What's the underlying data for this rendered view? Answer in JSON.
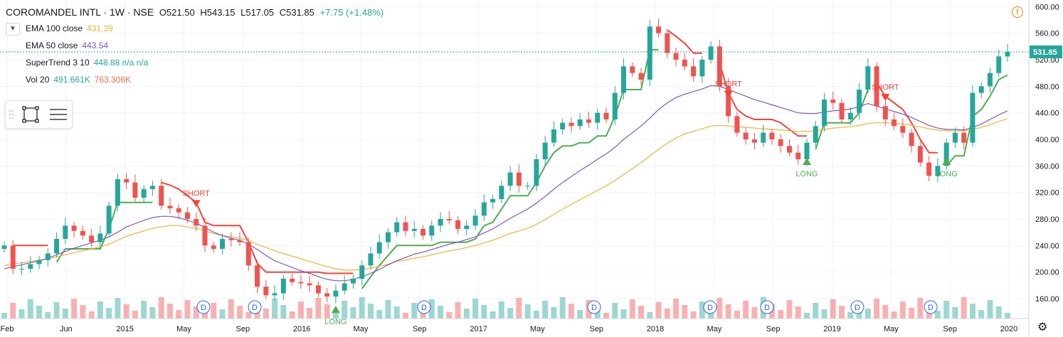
{
  "header": {
    "symbol": "COROMANDEL INTL · 1W · NSE",
    "open": "O521.50",
    "high": "H543.15",
    "low": "L517.05",
    "close": "C531.85",
    "change": "+7.75 (+1.48%)"
  },
  "indicators": [
    {
      "label": "EMA 100 close",
      "value": "431.39",
      "color": "#f2b134"
    },
    {
      "label": "EMA 50 close",
      "value": "443.54",
      "color": "#7e57c2"
    },
    {
      "label": "SuperTrend 3 10",
      "value": "448.88  n/a  n/a",
      "color": "#26a69a"
    },
    {
      "label": "Vol 20",
      "value": "491.661K",
      "value2": "763.306K",
      "color": "#26a69a",
      "color2": "#ef6c47"
    }
  ],
  "icons": {
    "collapse": "chevron-down-icon",
    "draw": "rectangle-tool-icon",
    "menu": "list-menu-icon",
    "warning": "warning-icon",
    "settings": "gear-icon"
  },
  "colors": {
    "up": "#26a69a",
    "down": "#ef5350",
    "supertrend_up": "#4caf50",
    "supertrend_down": "#f44336",
    "ema100": "#f2b134",
    "ema50": "#7e57c2"
  },
  "chart_data": {
    "type": "candlestick",
    "interval": "1W",
    "y_ticks": [
      "600.00",
      "560.00",
      "520.00",
      "480.00",
      "440.00",
      "400.00",
      "360.00",
      "320.00",
      "280.00",
      "240.00",
      "200.00",
      "160.00"
    ],
    "ylim": [
      130,
      610
    ],
    "last_price": "531.85",
    "x_labels": [
      "Feb",
      "Jun",
      "2015",
      "May",
      "Sep",
      "2016",
      "May",
      "Sep",
      "2017",
      "May",
      "Sep",
      "2018",
      "May",
      "Sep",
      "2019",
      "May",
      "Sep",
      "2020"
    ],
    "series": [
      {
        "name": "Price (weekly close)",
        "values": [
          240,
          205,
          205,
          212,
          218,
          228,
          250,
          270,
          262,
          255,
          245,
          258,
          300,
          340,
          335,
          312,
          325,
          330,
          300,
          296,
          290,
          280,
          270,
          240,
          235,
          250,
          248,
          245,
          210,
          178,
          165,
          168,
          190,
          185,
          183,
          180,
          168,
          163,
          172,
          183,
          190,
          210,
          228,
          245,
          260,
          275,
          262,
          265,
          255,
          270,
          280,
          278,
          265,
          270,
          285,
          305,
          310,
          330,
          350,
          330,
          330,
          370,
          395,
          415,
          425,
          420,
          430,
          425,
          440,
          430,
          470,
          510,
          500,
          490,
          570,
          560,
          530,
          520,
          510,
          495,
          520,
          540,
          480,
          435,
          410,
          400,
          395,
          410,
          400,
          390,
          380,
          370,
          395,
          420,
          460,
          455,
          430,
          440,
          475,
          510,
          450,
          430,
          420,
          410,
          390,
          365,
          345,
          360,
          395,
          410,
          395,
          470,
          480,
          500,
          525,
          532
        ]
      },
      {
        "name": "EMA 100",
        "values": [
          210,
          212,
          214,
          216,
          218,
          220,
          223,
          226,
          229,
          232,
          235,
          238,
          242,
          248,
          254,
          258,
          262,
          266,
          268,
          270,
          270,
          268,
          266,
          262,
          258,
          255,
          253,
          251,
          247,
          242,
          237,
          232,
          228,
          224,
          220,
          216,
          212,
          208,
          205,
          203,
          203,
          204,
          206,
          209,
          212,
          216,
          218,
          221,
          223,
          226,
          229,
          232,
          234,
          237,
          240,
          244,
          248,
          253,
          258,
          262,
          266,
          272,
          279,
          287,
          295,
          302,
          309,
          316,
          323,
          330,
          338,
          347,
          356,
          365,
          375,
          385,
          394,
          402,
          408,
          412,
          416,
          420,
          421,
          420,
          419,
          418,
          417,
          416,
          415,
          414,
          413,
          412,
          412,
          413,
          415,
          417,
          418,
          419,
          421,
          424,
          425,
          425,
          424,
          423,
          421,
          419,
          416,
          414,
          413,
          413,
          413,
          415,
          418,
          422,
          427,
          431
        ]
      },
      {
        "name": "EMA 50",
        "values": [
          205,
          208,
          211,
          214,
          217,
          221,
          226,
          231,
          236,
          240,
          244,
          248,
          253,
          260,
          268,
          273,
          278,
          282,
          284,
          284,
          282,
          278,
          274,
          267,
          260,
          255,
          251,
          248,
          242,
          234,
          225,
          217,
          212,
          207,
          202,
          198,
          193,
          189,
          187,
          187,
          189,
          193,
          198,
          204,
          211,
          217,
          222,
          227,
          230,
          234,
          238,
          242,
          245,
          249,
          253,
          259,
          265,
          273,
          281,
          288,
          295,
          304,
          314,
          325,
          335,
          344,
          353,
          361,
          370,
          378,
          388,
          400,
          410,
          420,
          432,
          445,
          455,
          463,
          468,
          472,
          476,
          481,
          480,
          475,
          470,
          465,
          460,
          456,
          452,
          448,
          444,
          440,
          439,
          439,
          441,
          443,
          444,
          446,
          449,
          454,
          450,
          446,
          442,
          438,
          433,
          427,
          421,
          417,
          415,
          415,
          414,
          418,
          423,
          430,
          437,
          443
        ]
      }
    ],
    "annotations": [
      "SHORT",
      "LONG",
      "SHORT",
      "LONG",
      "SHORT",
      "LONG",
      "D"
    ]
  }
}
